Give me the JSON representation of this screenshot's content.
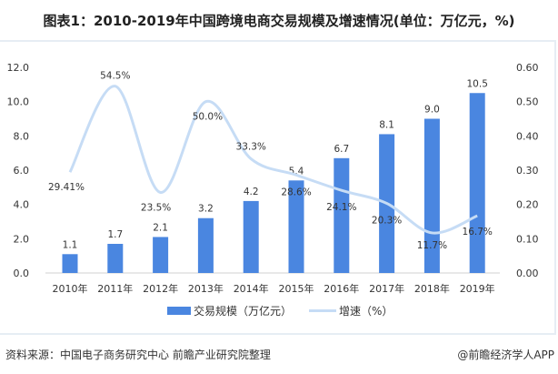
{
  "title": "图表1：2010-2019年中国跨境电商交易规模及增速情况(单位：万亿元，%)",
  "source": "资料来源：中国电子商务研究中心 前瞻产业研究院整理",
  "credit": "@前瞻经济学人APP",
  "chart_data": {
    "type": "bar+line",
    "categories": [
      "2010年",
      "2011年",
      "2012年",
      "2013年",
      "2014年",
      "2015年",
      "2016年",
      "2017年",
      "2018年",
      "2019年"
    ],
    "series": [
      {
        "name": "交易规模（万亿元）",
        "type": "bar",
        "axis": "left",
        "color": "#4a86e0",
        "values": [
          1.1,
          1.7,
          2.1,
          3.2,
          4.2,
          5.4,
          6.7,
          8.1,
          9.0,
          10.5
        ],
        "labels": [
          "1.1",
          "1.7",
          "2.1",
          "3.2",
          "4.2",
          "5.4",
          "6.7",
          "8.1",
          "9.0",
          "10.5"
        ]
      },
      {
        "name": "增速（%）",
        "type": "line",
        "axis": "right",
        "color": "#c6dcf5",
        "values": [
          0.2941,
          0.545,
          0.235,
          0.5,
          0.333,
          0.286,
          0.241,
          0.203,
          0.117,
          0.167
        ],
        "labels": [
          "29.41%",
          "54.5%",
          "23.5%",
          "50.0%",
          "33.3%",
          "28.6%",
          "24.1%",
          "20.3%",
          "11.7%",
          "16.7%"
        ]
      }
    ],
    "left_axis": {
      "ylim": [
        0,
        12
      ],
      "ticks": [
        "0.0",
        "2.0",
        "4.0",
        "6.0",
        "8.0",
        "10.0",
        "12.0"
      ]
    },
    "right_axis": {
      "ylim": [
        0,
        0.6
      ],
      "ticks": [
        "0.00",
        "0.10",
        "0.20",
        "0.30",
        "0.40",
        "0.50",
        "0.60"
      ]
    },
    "grid": false,
    "legend": "bottom"
  }
}
